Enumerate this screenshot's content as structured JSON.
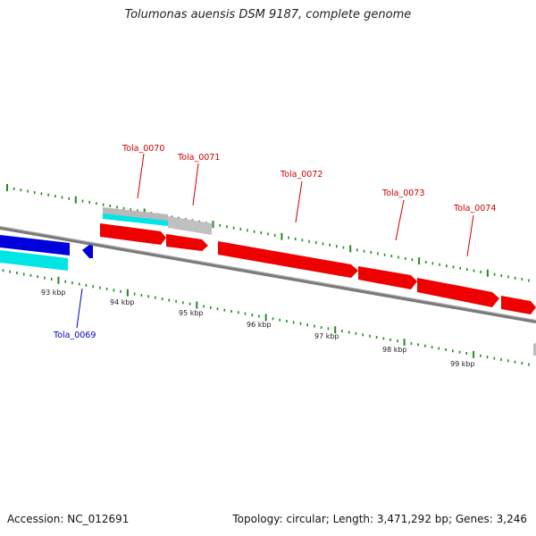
{
  "title": "Tolumonas auensis DSM 9187, complete genome",
  "footer": {
    "accession": "Accession: NC_012691",
    "summary": "Topology: circular; Length: 3,471,292 bp; Genes: 3,246"
  },
  "colors": {
    "forward_gene": "#ee0000",
    "reverse_gene": "#0000ee",
    "cds_cyan": "#00eeee",
    "rna_gray": "#bbbbbb",
    "backbone": "#888888",
    "ticks": "#228b22",
    "forward_label": "#cc0000",
    "reverse_label": "#0000cc"
  },
  "scale_labels": [
    {
      "text": "93 kbp"
    },
    {
      "text": "94 kbp"
    },
    {
      "text": "95 kbp"
    },
    {
      "text": "96 kbp"
    },
    {
      "text": "97 kbp"
    },
    {
      "text": "98 kbp"
    },
    {
      "text": "99 kbp"
    }
  ],
  "gene_labels": [
    {
      "text": "Tola_0069",
      "strand": "reverse"
    },
    {
      "text": "Tola_0070",
      "strand": "forward"
    },
    {
      "text": "Tola_0071",
      "strand": "forward"
    },
    {
      "text": "Tola_0072",
      "strand": "forward"
    },
    {
      "text": "Tola_0073",
      "strand": "forward"
    },
    {
      "text": "Tola_0074",
      "strand": "forward"
    }
  ]
}
